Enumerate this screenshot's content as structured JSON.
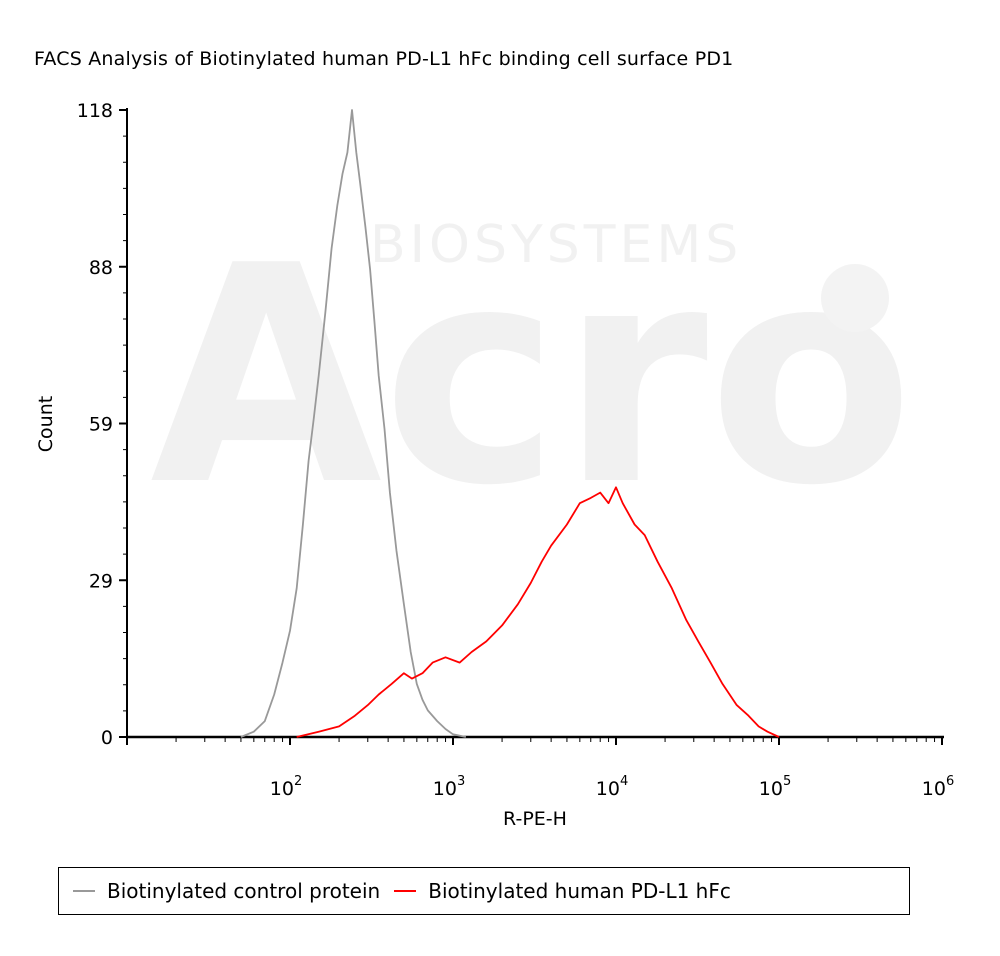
{
  "chart_data": {
    "type": "line",
    "title": "FACS Analysis of Biotinylated human PD-L1 hFc binding cell surface PD1",
    "xlabel": "R-PE-H",
    "ylabel": "Count",
    "x_scale": "log",
    "xlim": [
      10,
      1000000
    ],
    "ylim": [
      0,
      118
    ],
    "yticks": [
      "0",
      "29",
      "59",
      "88",
      "118"
    ],
    "xticks": [
      {
        "base": "10",
        "exp": "2"
      },
      {
        "base": "10",
        "exp": "3"
      },
      {
        "base": "10",
        "exp": "4"
      },
      {
        "base": "10",
        "exp": "5"
      },
      {
        "base": "10",
        "exp": "6"
      }
    ],
    "legend_position": "bottom",
    "series": [
      {
        "name": "Biotinylated control protein",
        "color": "#999999",
        "points": [
          [
            50,
            0
          ],
          [
            60,
            1
          ],
          [
            70,
            3
          ],
          [
            80,
            8
          ],
          [
            90,
            14
          ],
          [
            100,
            20
          ],
          [
            110,
            28
          ],
          [
            120,
            40
          ],
          [
            130,
            52
          ],
          [
            140,
            60
          ],
          [
            150,
            68
          ],
          [
            165,
            80
          ],
          [
            180,
            92
          ],
          [
            195,
            100
          ],
          [
            210,
            106
          ],
          [
            225,
            110
          ],
          [
            240,
            118
          ],
          [
            255,
            110
          ],
          [
            270,
            104
          ],
          [
            290,
            96
          ],
          [
            310,
            88
          ],
          [
            330,
            78
          ],
          [
            350,
            68
          ],
          [
            380,
            58
          ],
          [
            410,
            46
          ],
          [
            450,
            35
          ],
          [
            500,
            25
          ],
          [
            550,
            16
          ],
          [
            600,
            10
          ],
          [
            650,
            7
          ],
          [
            700,
            5
          ],
          [
            800,
            3
          ],
          [
            900,
            1.5
          ],
          [
            1000,
            0.5
          ],
          [
            1200,
            0
          ]
        ]
      },
      {
        "name": "Biotinylated human PD-L1 hFc",
        "color": "#ff0000",
        "points": [
          [
            110,
            0
          ],
          [
            150,
            1
          ],
          [
            200,
            2
          ],
          [
            250,
            4
          ],
          [
            300,
            6
          ],
          [
            350,
            8
          ],
          [
            420,
            10
          ],
          [
            500,
            12
          ],
          [
            560,
            11
          ],
          [
            650,
            12
          ],
          [
            750,
            14
          ],
          [
            900,
            15
          ],
          [
            1100,
            14
          ],
          [
            1300,
            16
          ],
          [
            1600,
            18
          ],
          [
            2000,
            21
          ],
          [
            2500,
            25
          ],
          [
            3000,
            29
          ],
          [
            3500,
            33
          ],
          [
            4000,
            36
          ],
          [
            5000,
            40
          ],
          [
            6000,
            44
          ],
          [
            7000,
            45
          ],
          [
            8000,
            46
          ],
          [
            9000,
            44
          ],
          [
            10000,
            47
          ],
          [
            11000,
            44
          ],
          [
            13000,
            40
          ],
          [
            15000,
            38
          ],
          [
            18000,
            33
          ],
          [
            22000,
            28
          ],
          [
            27000,
            22
          ],
          [
            32000,
            18
          ],
          [
            38000,
            14
          ],
          [
            45000,
            10
          ],
          [
            55000,
            6
          ],
          [
            65000,
            4
          ],
          [
            75000,
            2
          ],
          [
            85000,
            1
          ],
          [
            100000,
            0
          ]
        ]
      }
    ]
  },
  "legend": {
    "items": [
      {
        "label": "Biotinylated control protein",
        "color": "#999999"
      },
      {
        "label": "Biotinylated human PD-L1 hFc",
        "color": "#ff0000"
      }
    ]
  },
  "watermark": {
    "brand": "Acro",
    "subtitle": "BIOSYSTEMS"
  }
}
